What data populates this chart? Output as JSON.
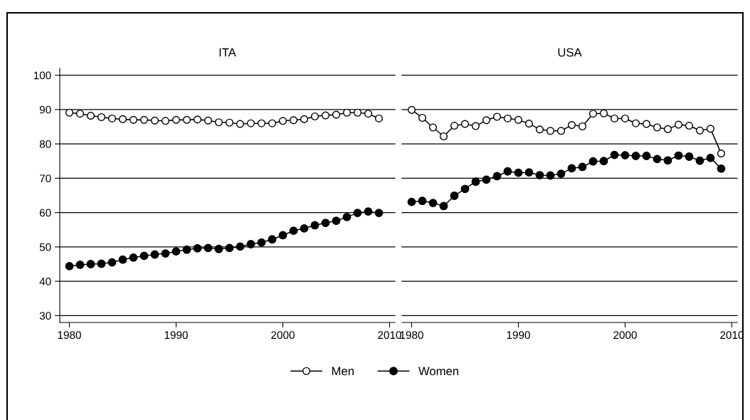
{
  "chart_data": [
    {
      "type": "line",
      "title": "ITA",
      "x": [
        1980,
        1981,
        1982,
        1983,
        1984,
        1985,
        1986,
        1987,
        1988,
        1989,
        1990,
        1991,
        1992,
        1993,
        1994,
        1995,
        1996,
        1997,
        1998,
        1999,
        2000,
        2001,
        2002,
        2003,
        2004,
        2005,
        2006,
        2007,
        2008,
        2009
      ],
      "series": [
        {
          "name": "Men",
          "color": "#000000",
          "marker": "circle",
          "values": [
            89.1,
            88.8,
            88.2,
            87.8,
            87.4,
            87.2,
            87.0,
            87.0,
            86.8,
            86.7,
            87.0,
            87.0,
            87.1,
            86.8,
            86.3,
            86.2,
            85.8,
            86.0,
            86.0,
            86.0,
            86.7,
            86.9,
            87.2,
            88.0,
            88.3,
            88.5,
            89.1,
            89.1,
            88.8,
            87.4
          ]
        },
        {
          "name": "Women",
          "color": "#000000",
          "marker": "circle",
          "values": [
            44.4,
            44.8,
            45.0,
            45.1,
            45.5,
            46.3,
            46.9,
            47.4,
            47.8,
            48.1,
            48.7,
            49.2,
            49.6,
            49.7,
            49.4,
            49.7,
            50.1,
            50.8,
            51.3,
            52.2,
            53.4,
            54.7,
            55.4,
            56.3,
            57.0,
            57.6,
            58.7,
            59.9,
            60.3,
            59.9
          ]
        }
      ],
      "xlim": [
        1979.1,
        2010.5
      ],
      "xticks": [
        1980,
        1990,
        2000,
        2010
      ],
      "ylim": [
        28,
        102
      ],
      "yticks": [
        30,
        40,
        50,
        60,
        70,
        80,
        90,
        100
      ],
      "grid": "y",
      "legend": "bottom"
    },
    {
      "type": "line",
      "title": "USA",
      "x": [
        1980,
        1981,
        1982,
        1983,
        1984,
        1985,
        1986,
        1987,
        1988,
        1989,
        1990,
        1991,
        1992,
        1993,
        1994,
        1995,
        1996,
        1997,
        1998,
        1999,
        2000,
        2001,
        2002,
        2003,
        2004,
        2005,
        2006,
        2007,
        2008,
        2009
      ],
      "series": [
        {
          "name": "Men",
          "color": "#000000",
          "marker": "circle",
          "values": [
            89.9,
            87.6,
            84.8,
            82.2,
            85.3,
            85.8,
            85.2,
            86.9,
            87.9,
            87.4,
            87.0,
            85.9,
            84.2,
            83.8,
            83.8,
            85.5,
            85.1,
            88.8,
            88.9,
            87.4,
            87.4,
            86.0,
            85.8,
            84.8,
            84.3,
            85.6,
            85.3,
            83.9,
            84.4,
            77.2
          ]
        },
        {
          "name": "Women",
          "color": "#000000",
          "marker": "circle",
          "values": [
            63.1,
            63.4,
            62.8,
            61.9,
            64.9,
            66.9,
            69.0,
            69.6,
            70.6,
            72.0,
            71.6,
            71.7,
            70.9,
            70.8,
            71.3,
            72.9,
            73.3,
            74.9,
            75.0,
            76.8,
            76.7,
            76.5,
            76.5,
            75.6,
            75.2,
            76.6,
            76.3,
            75.1,
            75.9,
            72.8
          ]
        }
      ],
      "xlim": [
        1979.1,
        2010.5
      ],
      "xticks": [
        1980,
        1990,
        2000,
        2010
      ],
      "ylim": [
        28,
        100
      ],
      "yticks": [
        30,
        40,
        50,
        60,
        70,
        80,
        90,
        100
      ],
      "grid": "y",
      "tick_labels": "x"
    }
  ]
}
